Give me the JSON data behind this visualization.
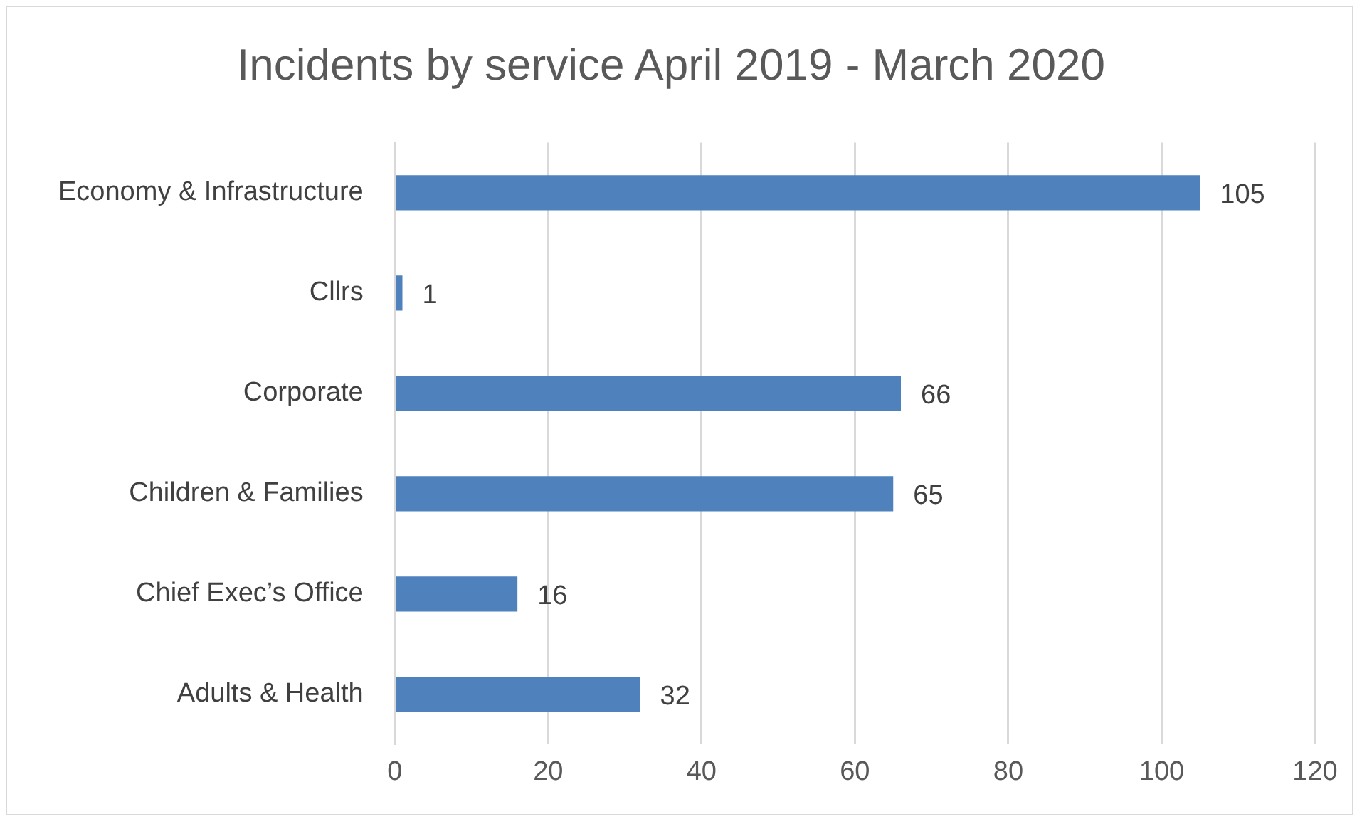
{
  "chart_data": {
    "type": "bar",
    "orientation": "horizontal",
    "title": "Incidents by service April 2019 - March 2020",
    "categories": [
      "Economy & Infrastructure",
      "Cllrs",
      "Corporate",
      "Children & Families",
      "Chief Exec’s Office",
      "Adults & Health"
    ],
    "values": [
      105,
      1,
      66,
      65,
      16,
      32
    ],
    "color": "#4f81bd",
    "xlim": [
      0,
      120
    ],
    "xticks": [
      0,
      20,
      40,
      60,
      80,
      100,
      120
    ],
    "grid": "x",
    "data_labels": true,
    "legend": false
  }
}
